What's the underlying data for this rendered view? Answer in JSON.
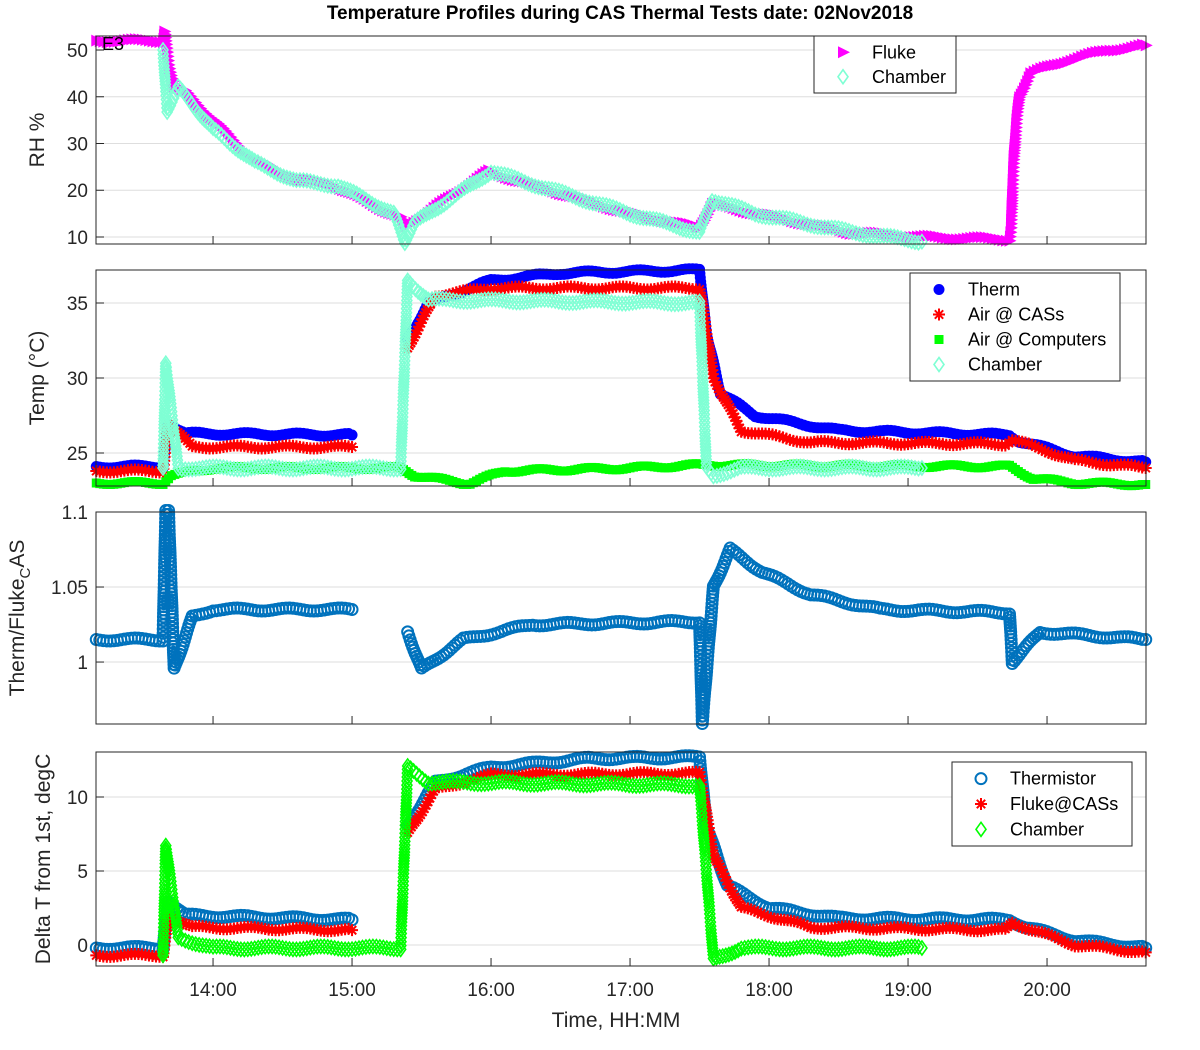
{
  "chart_data": [
    {
      "type": "scatter",
      "title": "Temperature Profiles during CAS Thermal Tests date: 02Nov2018",
      "annotation": "E3",
      "ylabel": "RH %",
      "xlim": [
        13.158,
        20.712
      ],
      "ylim": [
        8.5,
        53
      ],
      "yticks": [
        10,
        20,
        30,
        40,
        50
      ],
      "grid": "horizontal",
      "legend_position": "top-right",
      "series": [
        {
          "name": "Fluke",
          "marker": "triangle-right",
          "color": "#FF00FF",
          "filled": true,
          "points": [
            [
              13.16,
              52
            ],
            [
              13.64,
              52
            ],
            [
              13.65,
              54
            ],
            [
              13.68,
              47
            ],
            [
              13.72,
              42
            ],
            [
              13.8,
              41
            ],
            [
              14.27,
              27
            ],
            [
              14.63,
              22
            ],
            [
              14.84,
              21.5
            ],
            [
              15.35,
              14
            ],
            [
              15.38,
              12
            ],
            [
              15.98,
              24
            ],
            [
              17.0,
              15
            ],
            [
              17.5,
              12
            ],
            [
              17.59,
              17
            ],
            [
              18.58,
              11
            ],
            [
              19.09,
              10
            ],
            [
              19.73,
              9.5
            ],
            [
              19.74,
              12
            ],
            [
              19.75,
              20
            ],
            [
              19.76,
              27
            ],
            [
              19.78,
              35
            ],
            [
              19.8,
              40
            ],
            [
              19.88,
              45
            ],
            [
              20.17,
              48
            ],
            [
              20.45,
              50
            ],
            [
              20.71,
              51
            ]
          ]
        },
        {
          "name": "Chamber",
          "marker": "diamond",
          "color": "#7FFFD4",
          "filled": false,
          "points": [
            [
              13.64,
              50
            ],
            [
              13.67,
              37
            ],
            [
              13.75,
              42
            ],
            [
              14.0,
              33
            ],
            [
              14.3,
              26
            ],
            [
              14.6,
              22
            ],
            [
              14.9,
              21
            ],
            [
              15.3,
              15
            ],
            [
              15.38,
              9
            ],
            [
              15.45,
              13
            ],
            [
              16.0,
              24
            ],
            [
              17.0,
              15
            ],
            [
              17.5,
              11
            ],
            [
              17.59,
              18
            ],
            [
              17.9,
              15
            ],
            [
              18.6,
              11
            ],
            [
              19.1,
              9
            ]
          ]
        }
      ]
    },
    {
      "type": "scatter",
      "ylabel": "Temp (°C)",
      "xlim": [
        13.158,
        20.712
      ],
      "ylim": [
        22.8,
        37.2
      ],
      "yticks": [
        25,
        30,
        35
      ],
      "grid": "horizontal",
      "legend_position": "top-right",
      "series": [
        {
          "name": "Therm",
          "marker": "circle",
          "color": "#0000FF",
          "filled": true,
          "segments": [
            [
              [
                13.16,
                24.1
              ],
              [
                13.64,
                24.1
              ],
              [
                13.68,
                27
              ],
              [
                13.8,
                26.3
              ],
              [
                15.0,
                26.2
              ]
            ],
            [
              [
                15.4,
                32.5
              ],
              [
                15.55,
                35
              ],
              [
                16.0,
                36.5
              ],
              [
                16.5,
                37
              ],
              [
                17.5,
                37.2
              ],
              [
                17.55,
                33
              ],
              [
                17.65,
                29
              ],
              [
                17.9,
                27.5
              ],
              [
                18.5,
                26.5
              ],
              [
                19.73,
                26.2
              ],
              [
                19.8,
                25.8
              ],
              [
                20.2,
                24.8
              ],
              [
                20.71,
                24.4
              ]
            ]
          ]
        },
        {
          "name": "Air @ CASs",
          "marker": "asterisk",
          "color": "#FF0000",
          "filled": false,
          "segments": [
            [
              [
                13.16,
                23.8
              ],
              [
                13.64,
                23.8
              ],
              [
                13.68,
                27
              ],
              [
                13.85,
                25.4
              ],
              [
                15.0,
                25.4
              ]
            ],
            [
              [
                15.4,
                32
              ],
              [
                15.6,
                35.5
              ],
              [
                16.0,
                36
              ],
              [
                17.5,
                36
              ],
              [
                17.6,
                30
              ],
              [
                17.8,
                26.5
              ],
              [
                18.3,
                25.7
              ],
              [
                19.7,
                25.6
              ],
              [
                19.75,
                25.9
              ],
              [
                20.2,
                24.5
              ],
              [
                20.71,
                24
              ]
            ]
          ]
        },
        {
          "name": "Air @ Computers",
          "marker": "square",
          "color": "#00FF00",
          "filled": true,
          "segments": [
            [
              [
                13.16,
                23.0
              ],
              [
                13.64,
                23.0
              ],
              [
                13.7,
                23.5
              ],
              [
                14.0,
                24
              ],
              [
                15.35,
                24
              ],
              [
                15.45,
                23.5
              ],
              [
                15.8,
                23.0
              ],
              [
                15.85,
                23.0
              ],
              [
                16.1,
                23.8
              ],
              [
                17.0,
                24
              ],
              [
                17.5,
                24.2
              ],
              [
                19.73,
                24.1
              ],
              [
                19.9,
                23.3
              ],
              [
                20.2,
                23.0
              ],
              [
                20.71,
                22.9
              ]
            ]
          ]
        },
        {
          "name": "Chamber",
          "marker": "diamond",
          "color": "#7FFFD4",
          "filled": false,
          "segments": [
            [
              [
                13.64,
                24
              ],
              [
                13.66,
                31
              ],
              [
                13.75,
                24
              ],
              [
                15.35,
                24
              ],
              [
                15.4,
                36.5
              ],
              [
                15.55,
                35.2
              ],
              [
                17.5,
                35
              ],
              [
                17.55,
                24
              ],
              [
                17.6,
                23.5
              ],
              [
                17.8,
                24
              ],
              [
                19.1,
                24
              ]
            ]
          ]
        }
      ]
    },
    {
      "type": "scatter",
      "ylabel": "Therm/Fluke_CAS",
      "xlim": [
        13.158,
        20.712
      ],
      "ylim": [
        0.9587,
        1.1
      ],
      "yticks": [
        1,
        1.05,
        1.1
      ],
      "grid": "horizontal",
      "series": [
        {
          "name": "Ratio",
          "marker": "circle",
          "color": "#0072BD",
          "filled": false,
          "segments": [
            [
              [
                13.16,
                1.015
              ],
              [
                13.64,
                1.015
              ],
              [
                13.66,
                1.1
              ],
              [
                13.68,
                1.1
              ],
              [
                13.72,
                0.995
              ],
              [
                13.85,
                1.03
              ],
              [
                14.0,
                1.035
              ],
              [
                15.0,
                1.035
              ]
            ],
            [
              [
                15.4,
                1.02
              ],
              [
                15.5,
                0.995
              ],
              [
                15.8,
                1.015
              ],
              [
                16.3,
                1.025
              ],
              [
                17.5,
                1.027
              ],
              [
                17.52,
                0.96
              ],
              [
                17.6,
                1.05
              ],
              [
                17.72,
                1.075
              ],
              [
                17.95,
                1.06
              ],
              [
                18.3,
                1.045
              ],
              [
                18.8,
                1.035
              ],
              [
                19.73,
                1.033
              ],
              [
                19.75,
                1.0
              ],
              [
                19.95,
                1.02
              ],
              [
                20.71,
                1.015
              ]
            ]
          ]
        }
      ]
    },
    {
      "type": "scatter",
      "ylabel": "Delta T from 1st, degC",
      "xlabel": "Time, HH:MM",
      "xlim": [
        13.158,
        20.712
      ],
      "ylim": [
        -1.42,
        13.04
      ],
      "yticks": [
        0,
        5,
        10
      ],
      "xticks": [
        14,
        15,
        16,
        17,
        18,
        19,
        20
      ],
      "xticklabels": [
        "14:00",
        "15:00",
        "16:00",
        "17:00",
        "18:00",
        "19:00",
        "20:00"
      ],
      "grid": "horizontal",
      "legend_position": "top-right",
      "series": [
        {
          "name": "Thermistor",
          "marker": "circle",
          "color": "#0072BD",
          "filled": false,
          "segments": [
            [
              [
                13.16,
                -0.2
              ],
              [
                13.64,
                -0.2
              ],
              [
                13.68,
                3
              ],
              [
                13.8,
                2
              ],
              [
                15.0,
                1.7
              ]
            ],
            [
              [
                15.4,
                8
              ],
              [
                15.6,
                11
              ],
              [
                16.0,
                12
              ],
              [
                16.7,
                12.6
              ],
              [
                17.5,
                12.7
              ],
              [
                17.55,
                8
              ],
              [
                17.7,
                4
              ],
              [
                18.0,
                2.5
              ],
              [
                18.5,
                1.8
              ],
              [
                19.73,
                1.7
              ],
              [
                19.85,
                1.2
              ],
              [
                20.2,
                0.3
              ],
              [
                20.71,
                -0.2
              ]
            ]
          ]
        },
        {
          "name": "Fluke@CASs",
          "marker": "asterisk",
          "color": "#FF0000",
          "filled": false,
          "segments": [
            [
              [
                13.16,
                -0.7
              ],
              [
                13.64,
                -0.7
              ],
              [
                13.68,
                2
              ],
              [
                13.85,
                1.2
              ],
              [
                15.0,
                1.0
              ]
            ],
            [
              [
                15.4,
                7.5
              ],
              [
                15.6,
                10.5
              ],
              [
                16.0,
                11.5
              ],
              [
                17.5,
                11.6
              ],
              [
                17.6,
                6
              ],
              [
                17.8,
                2.5
              ],
              [
                18.3,
                1.2
              ],
              [
                19.7,
                1.0
              ],
              [
                19.75,
                1.5
              ],
              [
                20.2,
                0
              ],
              [
                20.71,
                -0.5
              ]
            ]
          ]
        },
        {
          "name": "Chamber",
          "marker": "diamond",
          "color": "#00FF00",
          "filled": false,
          "segments": [
            [
              [
                13.64,
                -0.7
              ],
              [
                13.66,
                6.8
              ],
              [
                13.75,
                0.5
              ],
              [
                14.0,
                -0.2
              ],
              [
                15.35,
                -0.2
              ],
              [
                15.4,
                12
              ],
              [
                15.55,
                11
              ],
              [
                17.5,
                10.8
              ],
              [
                17.6,
                -1
              ],
              [
                17.8,
                -0.2
              ],
              [
                19.1,
                -0.2
              ]
            ]
          ]
        }
      ]
    }
  ]
}
